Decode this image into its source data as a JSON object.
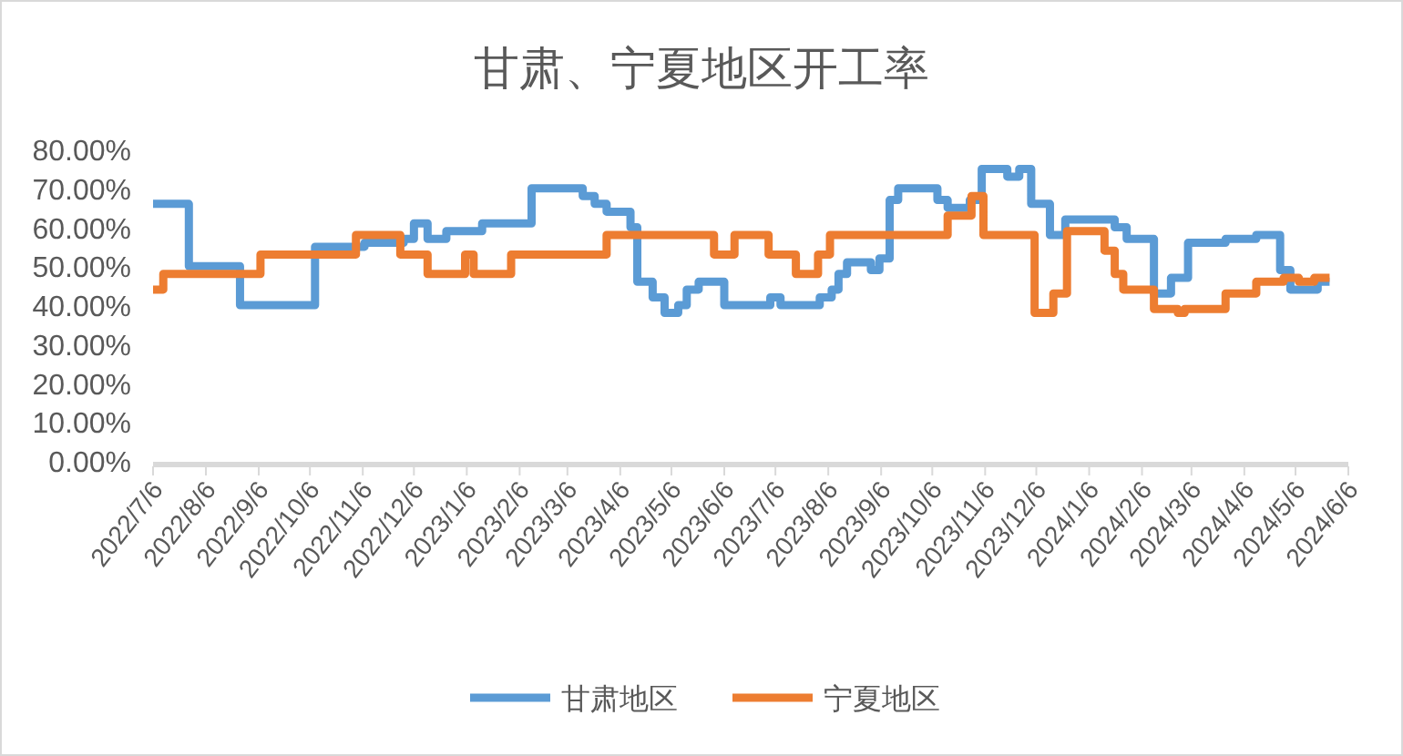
{
  "chart_data": {
    "type": "step",
    "title": "甘肃、宁夏地区开工率",
    "xlim": [
      "2022-07-06",
      "2024-06-06"
    ],
    "xticks": [
      {
        "value": "2022-07-06",
        "label": "2022/7/6"
      },
      {
        "value": "2022-08-06",
        "label": "2022/8/6"
      },
      {
        "value": "2022-09-06",
        "label": "2022/9/6"
      },
      {
        "value": "2022-10-06",
        "label": "2022/10/6"
      },
      {
        "value": "2022-11-06",
        "label": "2022/11/6"
      },
      {
        "value": "2022-12-06",
        "label": "2022/12/6"
      },
      {
        "value": "2023-01-06",
        "label": "2023/1/6"
      },
      {
        "value": "2023-02-06",
        "label": "2023/2/6"
      },
      {
        "value": "2023-03-06",
        "label": "2023/3/6"
      },
      {
        "value": "2023-04-06",
        "label": "2023/4/6"
      },
      {
        "value": "2023-05-06",
        "label": "2023/5/6"
      },
      {
        "value": "2023-06-06",
        "label": "2023/6/6"
      },
      {
        "value": "2023-07-06",
        "label": "2023/7/6"
      },
      {
        "value": "2023-08-06",
        "label": "2023/8/6"
      },
      {
        "value": "2023-09-06",
        "label": "2023/9/6"
      },
      {
        "value": "2023-10-06",
        "label": "2023/10/6"
      },
      {
        "value": "2023-11-06",
        "label": "2023/11/6"
      },
      {
        "value": "2023-12-06",
        "label": "2023/12/6"
      },
      {
        "value": "2024-01-06",
        "label": "2024/1/6"
      },
      {
        "value": "2024-02-06",
        "label": "2024/2/6"
      },
      {
        "value": "2024-03-06",
        "label": "2024/3/6"
      },
      {
        "value": "2024-04-06",
        "label": "2024/4/6"
      },
      {
        "value": "2024-05-06",
        "label": "2024/5/6"
      },
      {
        "value": "2024-06-06",
        "label": "2024/6/6"
      }
    ],
    "ylim": [
      0,
      80
    ],
    "yticks": [
      {
        "value": 0,
        "label": "0.00%"
      },
      {
        "value": 10,
        "label": "10.00%"
      },
      {
        "value": 20,
        "label": "20.00%"
      },
      {
        "value": 30,
        "label": "30.00%"
      },
      {
        "value": 40,
        "label": "40.00%"
      },
      {
        "value": 50,
        "label": "50.00%"
      },
      {
        "value": 60,
        "label": "60.00%"
      },
      {
        "value": 70,
        "label": "70.00%"
      },
      {
        "value": 80,
        "label": "80.00%"
      }
    ],
    "legend": "bottom",
    "series": [
      {
        "name": "甘肃地区",
        "color": "#5b9bd5",
        "x": [
          "2022-07-06",
          "2022-07-27",
          "2022-08-26",
          "2022-10-09",
          "2022-11-07",
          "2022-11-30",
          "2022-12-06",
          "2022-12-14",
          "2022-12-25",
          "2023-01-15",
          "2023-02-13",
          "2023-03-15",
          "2023-03-22",
          "2023-03-29",
          "2023-04-12",
          "2023-04-16",
          "2023-04-25",
          "2023-05-02",
          "2023-05-10",
          "2023-05-15",
          "2023-05-22",
          "2023-06-06",
          "2023-07-03",
          "2023-07-09",
          "2023-08-01",
          "2023-08-08",
          "2023-08-12",
          "2023-08-17",
          "2023-08-31",
          "2023-09-05",
          "2023-09-11",
          "2023-09-16",
          "2023-10-09",
          "2023-10-15",
          "2023-10-28",
          "2023-11-04",
          "2023-11-19",
          "2023-11-26",
          "2023-12-03",
          "2023-12-14",
          "2023-12-23",
          "2024-01-21",
          "2024-01-28",
          "2024-02-13",
          "2024-02-23",
          "2024-03-04",
          "2024-03-26",
          "2024-04-13",
          "2024-04-27",
          "2024-05-03",
          "2024-05-19",
          "2024-05-26"
        ],
        "values": [
          66,
          50,
          40,
          55,
          56,
          57,
          61,
          57,
          59,
          61,
          70,
          68,
          66,
          64,
          60,
          46,
          42,
          38,
          40,
          44,
          46,
          40,
          42,
          40,
          42,
          44,
          48,
          51,
          49,
          52,
          67,
          70,
          67,
          65,
          67,
          75,
          73,
          75,
          66,
          58,
          62,
          60,
          57,
          43,
          47,
          56,
          57,
          58,
          49,
          44,
          46,
          46
        ]
      },
      {
        "name": "宁夏地区",
        "color": "#ed7d31",
        "x": [
          "2022-07-06",
          "2022-07-12",
          "2022-09-07",
          "2022-11-02",
          "2022-11-28",
          "2022-12-14",
          "2023-01-05",
          "2023-01-10",
          "2023-02-01",
          "2023-03-29",
          "2023-05-31",
          "2023-06-12",
          "2023-07-02",
          "2023-07-18",
          "2023-07-31",
          "2023-08-07",
          "2023-10-15",
          "2023-10-29",
          "2023-11-05",
          "2023-12-05",
          "2023-12-16",
          "2023-12-24",
          "2024-01-15",
          "2024-01-21",
          "2024-01-26",
          "2024-02-13",
          "2024-02-27",
          "2024-03-02",
          "2024-03-26",
          "2024-04-13",
          "2024-04-29",
          "2024-05-08",
          "2024-05-17",
          "2024-05-26"
        ],
        "values": [
          44,
          48,
          53,
          58,
          53,
          48,
          53,
          48,
          53,
          58,
          53,
          58,
          53,
          48,
          53,
          58,
          63,
          68,
          58,
          38,
          43,
          59,
          54,
          48,
          44,
          39,
          38,
          39,
          43,
          46,
          47,
          46,
          47,
          47
        ]
      }
    ]
  }
}
